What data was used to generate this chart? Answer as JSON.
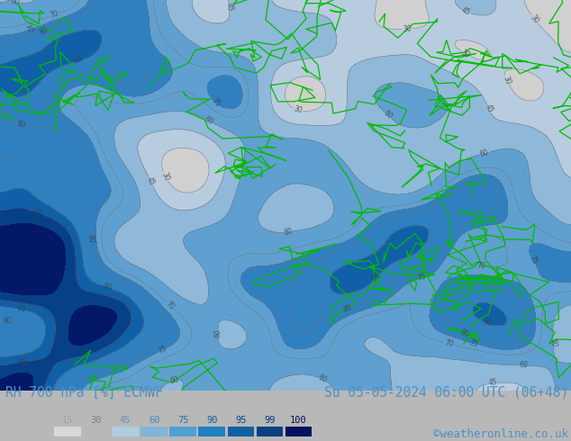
{
  "title_left": "RH 700 hPa [%] ECMWF",
  "title_right": "Su 05-05-2024 06:00 UTC (06+48)",
  "credit": "©weatheronline.co.uk",
  "legend_values": [
    "15",
    "30",
    "45",
    "60",
    "75",
    "90",
    "95",
    "99",
    "100"
  ],
  "legend_colors": [
    "#d8d8d8",
    "#b8b8b8",
    "#b0cce0",
    "#80b4d8",
    "#50a0d0",
    "#2080c0",
    "#1060a0",
    "#084080",
    "#041060"
  ],
  "legend_text_colors": [
    "#b0b0b0",
    "#909090",
    "#80a0c0",
    "#5090c0",
    "#3080b0",
    "#1060a0",
    "#0848808",
    "#064070",
    "#041050"
  ],
  "bg_color": "#b8b8b8",
  "map_bg_color": "#c8c8c8",
  "title_color": "#5090c0",
  "title_fontsize": 10.5,
  "credit_color": "#5090c0",
  "credit_fontsize": 9,
  "figsize": [
    6.34,
    4.9
  ],
  "dpi": 100
}
